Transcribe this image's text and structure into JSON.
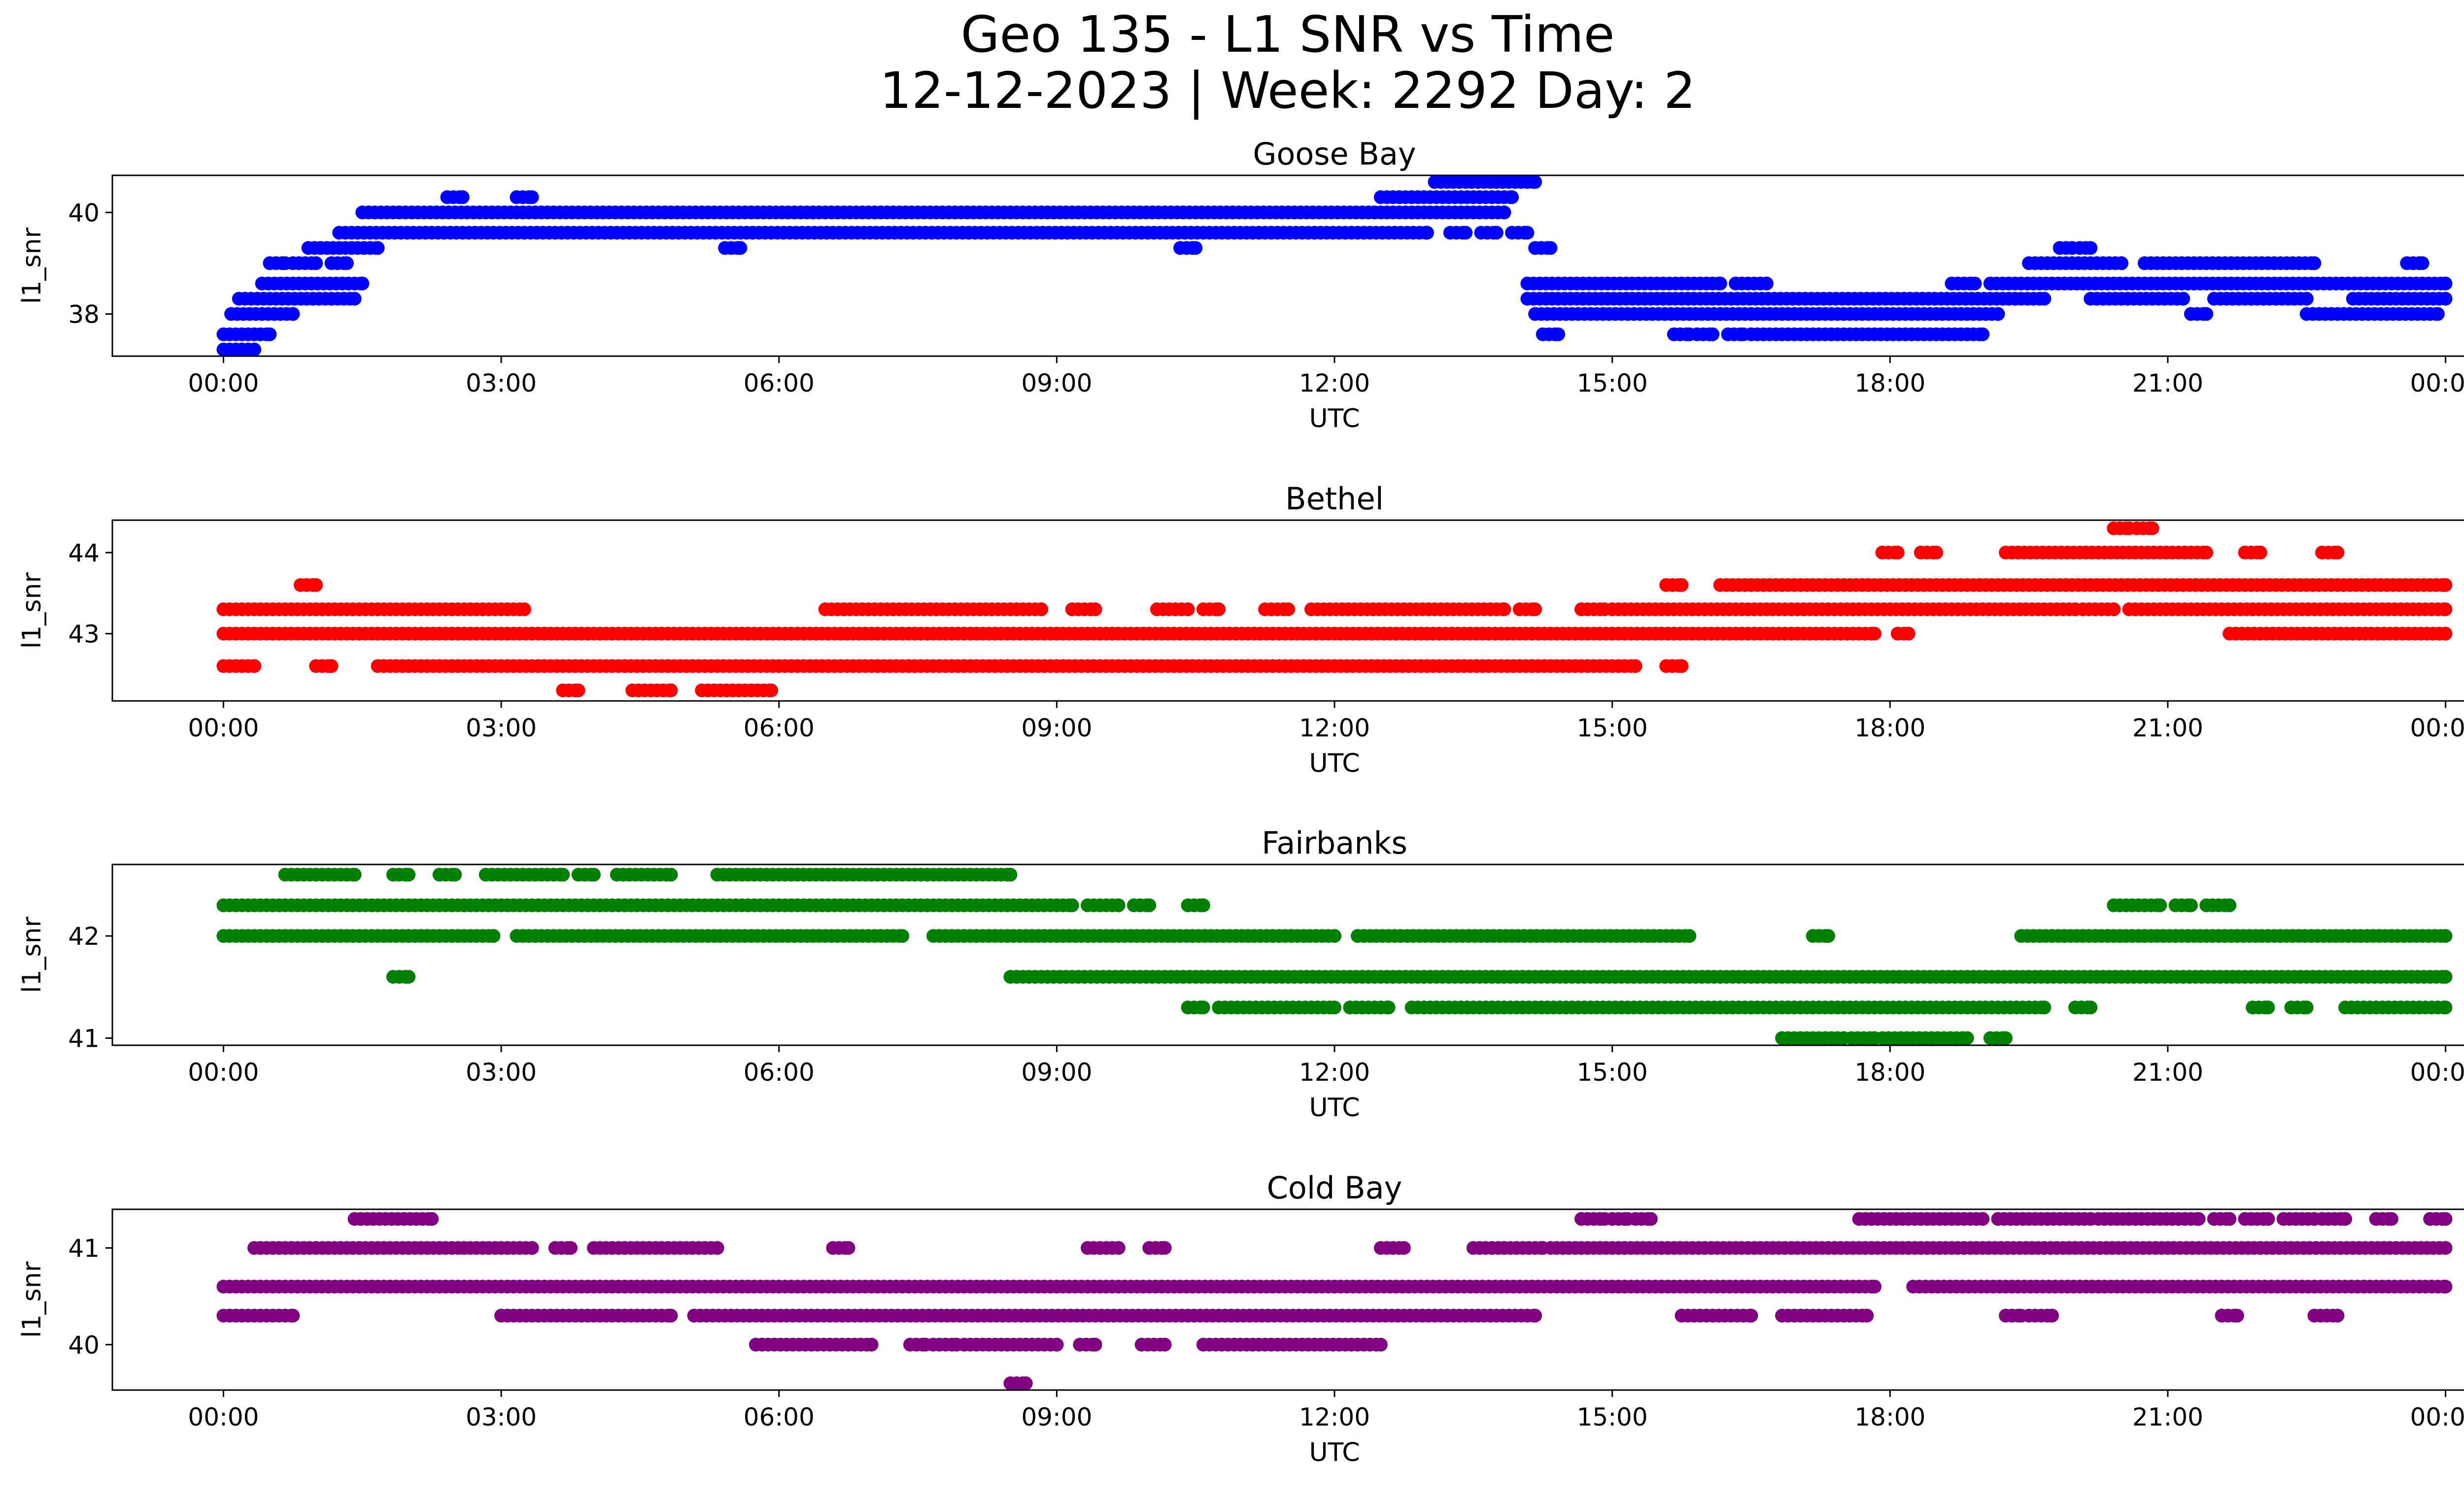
{
  "figure": {
    "title_line1": "Geo 135 - L1 SNR vs Time",
    "title_line2": "12-12-2023 | Week: 2292 Day: 2"
  },
  "chart_data": [
    {
      "type": "scatter",
      "title": "Goose Bay",
      "xlabel": "UTC",
      "ylabel": "l1_snr",
      "color": "#0000ff",
      "x_ticks": [
        "00:00",
        "03:00",
        "06:00",
        "09:00",
        "12:00",
        "15:00",
        "18:00",
        "21:00",
        "00:00"
      ],
      "y_ticks": [
        38,
        40
      ],
      "xlim": [
        "-01:12",
        "25:12"
      ],
      "ylim": [
        37.17,
        40.73
      ],
      "levels": [
        37.3,
        37.6,
        38.0,
        38.3,
        38.6,
        39.0,
        39.3,
        39.6,
        40.0,
        40.3,
        40.6
      ],
      "series": [
        {
          "y": 37.3,
          "segments": [
            [
              "00:00",
              "00:20"
            ]
          ]
        },
        {
          "y": 37.6,
          "segments": [
            [
              "00:00",
              "00:30"
            ],
            [
              "14:15",
              "14:25"
            ],
            [
              "15:40",
              "15:50"
            ],
            [
              "15:55",
              "16:05"
            ],
            [
              "16:15",
              "16:25"
            ],
            [
              "16:30",
              "19:00"
            ]
          ]
        },
        {
          "y": 38.0,
          "segments": [
            [
              "00:05",
              "00:45"
            ],
            [
              "14:10",
              "19:10"
            ],
            [
              "21:15",
              "21:25"
            ],
            [
              "22:30",
              "23:55"
            ]
          ]
        },
        {
          "y": 38.3,
          "segments": [
            [
              "00:10",
              "01:25"
            ],
            [
              "14:05",
              "19:40"
            ],
            [
              "20:10",
              "21:10"
            ],
            [
              "21:30",
              "22:30"
            ],
            [
              "23:00",
              "24:00"
            ]
          ]
        },
        {
          "y": 38.6,
          "segments": [
            [
              "00:25",
              "01:30"
            ],
            [
              "14:05",
              "16:10"
            ],
            [
              "16:20",
              "16:40"
            ],
            [
              "18:40",
              "18:55"
            ],
            [
              "19:05",
              "24:00"
            ]
          ]
        },
        {
          "y": 39.0,
          "segments": [
            [
              "00:30",
              "00:40"
            ],
            [
              "00:45",
              "01:00"
            ],
            [
              "01:10",
              "01:20"
            ],
            [
              "19:30",
              "20:30"
            ],
            [
              "20:45",
              "22:35"
            ],
            [
              "23:35",
              "23:45"
            ]
          ]
        },
        {
          "y": 39.3,
          "segments": [
            [
              "00:55",
              "01:40"
            ],
            [
              "05:25",
              "05:35"
            ],
            [
              "10:20",
              "10:30"
            ],
            [
              "14:10",
              "14:20"
            ],
            [
              "19:50",
              "19:58"
            ],
            [
              "20:03",
              "20:10"
            ]
          ]
        },
        {
          "y": 39.6,
          "segments": [
            [
              "01:15",
              "13:00"
            ],
            [
              "13:15",
              "13:25"
            ],
            [
              "13:35",
              "13:45"
            ],
            [
              "13:55",
              "14:05"
            ]
          ]
        },
        {
          "y": 40.0,
          "segments": [
            [
              "01:30",
              "13:50"
            ]
          ]
        },
        {
          "y": 40.3,
          "segments": [
            [
              "02:25",
              "02:35"
            ],
            [
              "03:10",
              "03:20"
            ],
            [
              "12:30",
              "13:55"
            ]
          ]
        },
        {
          "y": 40.6,
          "segments": [
            [
              "13:05",
              "14:10"
            ]
          ]
        }
      ]
    },
    {
      "type": "scatter",
      "title": "Bethel",
      "xlabel": "UTC",
      "ylabel": "l1_snr",
      "color": "#ff0000",
      "x_ticks": [
        "00:00",
        "03:00",
        "06:00",
        "09:00",
        "12:00",
        "15:00",
        "18:00",
        "21:00",
        "00:00"
      ],
      "y_ticks": [
        43,
        44
      ],
      "xlim": [
        "-01:12",
        "25:12"
      ],
      "ylim": [
        42.17,
        44.4
      ],
      "levels": [
        42.3,
        42.6,
        43.0,
        43.3,
        43.6,
        44.0,
        44.3
      ],
      "series": [
        {
          "y": 42.3,
          "segments": [
            [
              "03:40",
              "03:50"
            ],
            [
              "04:25",
              "04:50"
            ],
            [
              "05:10",
              "05:55"
            ]
          ]
        },
        {
          "y": 42.6,
          "segments": [
            [
              "00:00",
              "00:20"
            ],
            [
              "01:00",
              "01:10"
            ],
            [
              "01:40",
              "15:15"
            ],
            [
              "15:35",
              "15:45"
            ]
          ]
        },
        {
          "y": 43.0,
          "segments": [
            [
              "00:00",
              "17:50"
            ],
            [
              "18:05",
              "18:12"
            ],
            [
              "21:40",
              "24:00"
            ]
          ]
        },
        {
          "y": 43.3,
          "segments": [
            [
              "00:00",
              "03:15"
            ],
            [
              "06:30",
              "08:50"
            ],
            [
              "09:10",
              "09:25"
            ],
            [
              "10:05",
              "10:25"
            ],
            [
              "10:35",
              "10:45"
            ],
            [
              "11:15",
              "11:30"
            ],
            [
              "11:45",
              "13:50"
            ],
            [
              "14:00",
              "14:10"
            ],
            [
              "14:40",
              "14:55"
            ],
            [
              "15:00",
              "20:00"
            ],
            [
              "20:05",
              "20:25"
            ],
            [
              "20:35",
              "24:00"
            ]
          ]
        },
        {
          "y": 43.6,
          "segments": [
            [
              "00:50",
              "01:00"
            ],
            [
              "15:35",
              "15:45"
            ],
            [
              "16:10",
              "24:00"
            ]
          ]
        },
        {
          "y": 44.0,
          "segments": [
            [
              "17:55",
              "18:05"
            ],
            [
              "18:20",
              "18:30"
            ],
            [
              "19:15",
              "21:25"
            ],
            [
              "21:50",
              "22:00"
            ],
            [
              "22:40",
              "22:50"
            ]
          ]
        },
        {
          "y": 44.3,
          "segments": [
            [
              "20:25",
              "20:35"
            ],
            [
              "20:40",
              "20:50"
            ]
          ]
        }
      ]
    },
    {
      "type": "scatter",
      "title": "Fairbanks",
      "xlabel": "UTC",
      "ylabel": "l1_snr",
      "color": "#008000",
      "x_ticks": [
        "00:00",
        "03:00",
        "06:00",
        "09:00",
        "12:00",
        "15:00",
        "18:00",
        "21:00",
        "00:00"
      ],
      "y_ticks": [
        41,
        42
      ],
      "xlim": [
        "-01:12",
        "25:12"
      ],
      "ylim": [
        40.93,
        42.7
      ],
      "levels": [
        41.0,
        41.3,
        41.6,
        42.0,
        42.3,
        42.6
      ],
      "series": [
        {
          "y": 41.0,
          "segments": [
            [
              "16:50",
              "17:30"
            ],
            [
              "17:35",
              "17:50"
            ],
            [
              "17:55",
              "18:50"
            ],
            [
              "19:05",
              "19:15"
            ]
          ]
        },
        {
          "y": 41.3,
          "segments": [
            [
              "10:25",
              "10:35"
            ],
            [
              "10:45",
              "12:00"
            ],
            [
              "12:10",
              "12:35"
            ],
            [
              "12:50",
              "19:40"
            ],
            [
              "20:00",
              "20:10"
            ],
            [
              "21:55",
              "22:05"
            ],
            [
              "22:20",
              "22:30"
            ],
            [
              "22:55",
              "24:00"
            ]
          ]
        },
        {
          "y": 41.6,
          "segments": [
            [
              "01:50",
              "02:00"
            ],
            [
              "08:30",
              "24:00"
            ]
          ]
        },
        {
          "y": 42.0,
          "segments": [
            [
              "00:00",
              "02:55"
            ],
            [
              "03:10",
              "07:20"
            ],
            [
              "07:40",
              "12:00"
            ],
            [
              "12:15",
              "15:50"
            ],
            [
              "17:10",
              "17:20"
            ],
            [
              "19:25",
              "24:00"
            ]
          ]
        },
        {
          "y": 42.3,
          "segments": [
            [
              "00:00",
              "09:10"
            ],
            [
              "09:20",
              "09:40"
            ],
            [
              "09:50",
              "10:00"
            ],
            [
              "10:25",
              "10:35"
            ],
            [
              "20:25",
              "20:55"
            ],
            [
              "21:05",
              "21:15"
            ],
            [
              "21:25",
              "21:40"
            ]
          ]
        },
        {
          "y": 42.6,
          "segments": [
            [
              "00:40",
              "01:25"
            ],
            [
              "01:50",
              "02:00"
            ],
            [
              "02:20",
              "02:30"
            ],
            [
              "02:50",
              "03:40"
            ],
            [
              "03:50",
              "04:00"
            ],
            [
              "04:15",
              "04:50"
            ],
            [
              "05:20",
              "08:30"
            ]
          ]
        }
      ]
    },
    {
      "type": "scatter",
      "title": "Cold Bay",
      "xlabel": "UTC",
      "ylabel": "l1_snr",
      "color": "#800080",
      "x_ticks": [
        "00:00",
        "03:00",
        "06:00",
        "09:00",
        "12:00",
        "15:00",
        "18:00",
        "21:00",
        "00:00"
      ],
      "y_ticks": [
        40,
        41
      ],
      "xlim": [
        "-01:12",
        "25:12"
      ],
      "ylim": [
        39.53,
        41.4
      ],
      "levels": [
        39.6,
        40.0,
        40.3,
        40.6,
        41.0,
        41.3
      ],
      "series": [
        {
          "y": 39.6,
          "segments": [
            [
              "08:30",
              "08:40"
            ]
          ]
        },
        {
          "y": 40.0,
          "segments": [
            [
              "05:45",
              "07:00"
            ],
            [
              "07:25",
              "07:35"
            ],
            [
              "07:40",
              "07:55"
            ],
            [
              "08:00",
              "09:00"
            ],
            [
              "09:15",
              "09:25"
            ],
            [
              "09:55",
              "10:10"
            ],
            [
              "10:35",
              "12:30"
            ]
          ]
        },
        {
          "y": 40.3,
          "segments": [
            [
              "00:00",
              "00:45"
            ],
            [
              "03:00",
              "04:50"
            ],
            [
              "05:05",
              "14:10"
            ],
            [
              "15:45",
              "16:30"
            ],
            [
              "16:50",
              "17:45"
            ],
            [
              "19:15",
              "19:25"
            ],
            [
              "19:30",
              "19:45"
            ],
            [
              "21:35",
              "21:45"
            ],
            [
              "22:35",
              "22:50"
            ]
          ]
        },
        {
          "y": 40.6,
          "segments": [
            [
              "00:00",
              "17:50"
            ],
            [
              "18:15",
              "24:00"
            ]
          ]
        },
        {
          "y": 41.0,
          "segments": [
            [
              "00:20",
              "03:20"
            ],
            [
              "03:35",
              "03:45"
            ],
            [
              "04:00",
              "05:20"
            ],
            [
              "06:35",
              "06:45"
            ],
            [
              "09:20",
              "09:40"
            ],
            [
              "10:00",
              "10:10"
            ],
            [
              "12:30",
              "12:45"
            ],
            [
              "13:30",
              "14:15"
            ],
            [
              "14:20",
              "24:00"
            ]
          ]
        },
        {
          "y": 41.3,
          "segments": [
            [
              "01:25",
              "02:15"
            ],
            [
              "14:40",
              "14:55"
            ],
            [
              "15:00",
              "15:10"
            ],
            [
              "15:15",
              "15:25"
            ],
            [
              "17:40",
              "19:00"
            ],
            [
              "19:10",
              "20:10"
            ],
            [
              "20:15",
              "21:20"
            ],
            [
              "21:30",
              "21:40"
            ],
            [
              "21:50",
              "22:05"
            ],
            [
              "22:15",
              "22:35"
            ],
            [
              "22:40",
              "22:55"
            ],
            [
              "23:15",
              "23:25"
            ],
            [
              "23:50",
              "24:00"
            ]
          ]
        }
      ]
    }
  ]
}
